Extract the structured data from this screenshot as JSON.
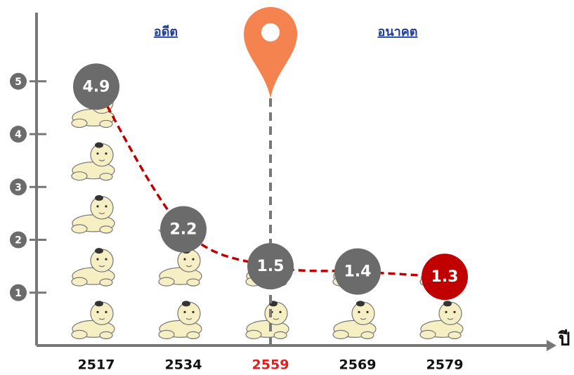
{
  "chart_data": {
    "type": "line",
    "categories": [
      "2517",
      "2534",
      "2559",
      "2569",
      "2579"
    ],
    "category_colors": [
      "#111111",
      "#111111",
      "#e02020",
      "#111111",
      "#111111"
    ],
    "values": [
      4.9,
      2.2,
      1.5,
      1.4,
      1.3
    ],
    "marker_colors": [
      "#6b6b6b",
      "#6b6b6b",
      "#6b6b6b",
      "#6b6b6b",
      "#c00000"
    ],
    "color": "#c00000",
    "xlabel": "ปี",
    "ylim": [
      0,
      6.3
    ],
    "yticks": [
      1,
      2,
      3,
      4,
      5
    ],
    "annotations": [
      "อดีต",
      "อนาคต"
    ],
    "pictograph": true
  }
}
